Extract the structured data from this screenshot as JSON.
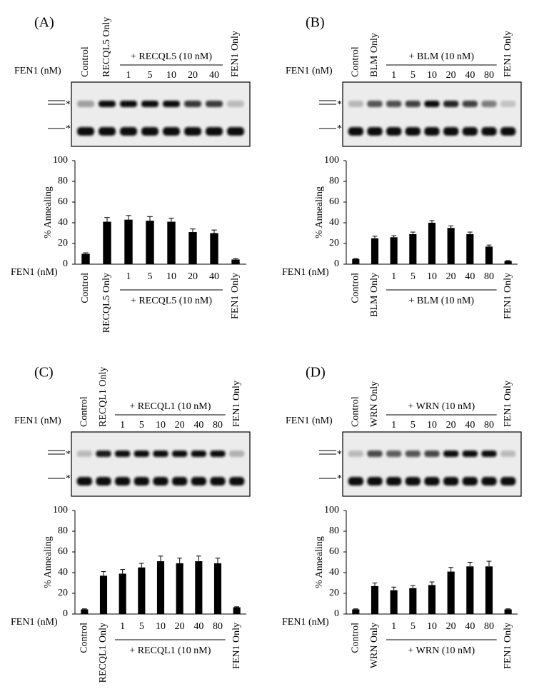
{
  "chart_data": [
    {
      "type": "bar",
      "panel": "(A)",
      "fen1_label": "FEN1 (nM)",
      "group_label": "+ RECQL5 (10 nM)",
      "y_label": "% Annealing",
      "gel_markers": [
        "*",
        "*"
      ],
      "categories": [
        "Control",
        "RECQL5 Only",
        "1",
        "5",
        "10",
        "20",
        "40",
        "FEN1 Only"
      ],
      "values": [
        10,
        41,
        43,
        42,
        41,
        31,
        30,
        4.5
      ],
      "errors": [
        1,
        4,
        4,
        4,
        3.5,
        3,
        3,
        0.8
      ],
      "color": "#000000",
      "ylim": [
        0,
        100
      ],
      "yticks": [
        0,
        20,
        40,
        60,
        80,
        100
      ]
    },
    {
      "type": "bar",
      "panel": "(B)",
      "fen1_label": "FEN1 (nM)",
      "group_label": "+ BLM (10 nM)",
      "y_label": "% Annealing",
      "gel_markers": [
        "*",
        "*"
      ],
      "categories": [
        "Control",
        "BLM Only",
        "1",
        "5",
        "10",
        "20",
        "40",
        "80",
        "FEN1 Only"
      ],
      "values": [
        5,
        25,
        26,
        29,
        40,
        35,
        29,
        17,
        3
      ],
      "errors": [
        0.5,
        2,
        1.5,
        2,
        2,
        2,
        2,
        1.5,
        0.5
      ],
      "color": "#000000",
      "ylim": [
        0,
        100
      ],
      "yticks": [
        0,
        20,
        40,
        60,
        80,
        100
      ]
    },
    {
      "type": "bar",
      "panel": "(C)",
      "fen1_label": "FEN1 (nM)",
      "group_label": "+ RECQL1 (10 nM)",
      "y_label": "% Annealing",
      "gel_markers": [
        "*",
        "*"
      ],
      "categories": [
        "Control",
        "RECQL1 Only",
        "1",
        "5",
        "10",
        "20",
        "40",
        "80",
        "FEN1 Only"
      ],
      "values": [
        4.5,
        37,
        39,
        45,
        51,
        49,
        51,
        49,
        6.5
      ],
      "errors": [
        0.5,
        4,
        4,
        4,
        5,
        5,
        5,
        5,
        0.5
      ],
      "color": "#000000",
      "ylim": [
        0,
        100
      ],
      "yticks": [
        0,
        20,
        40,
        60,
        80,
        100
      ]
    },
    {
      "type": "bar",
      "panel": "(D)",
      "fen1_label": "FEN1 (nM)",
      "group_label": "+ WRN (10 nM)",
      "y_label": "% Annealing",
      "gel_markers": [
        "*",
        "*"
      ],
      "categories": [
        "Control",
        "WRN Only",
        "1",
        "5",
        "10",
        "20",
        "40",
        "80",
        "FEN1 Only"
      ],
      "values": [
        4.5,
        27,
        23,
        25,
        28,
        41,
        46,
        46,
        4.5
      ],
      "errors": [
        0.5,
        3,
        3,
        2.5,
        3,
        4,
        4,
        5,
        0.5
      ],
      "color": "#000000",
      "ylim": [
        0,
        100
      ],
      "yticks": [
        0,
        20,
        40,
        60,
        80,
        100
      ]
    }
  ]
}
